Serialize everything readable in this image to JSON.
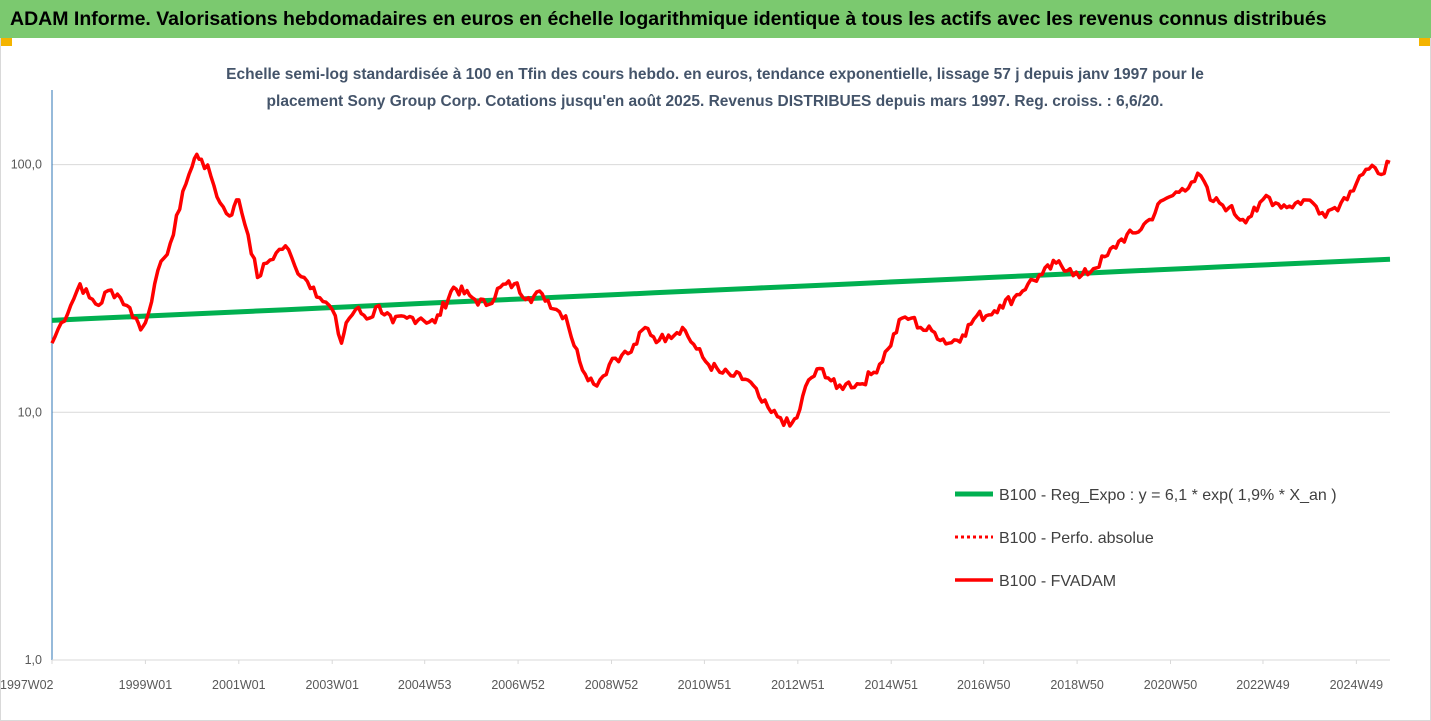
{
  "banner": {
    "title": "ADAM Informe. Valorisations hebdomadaires en euros en échelle logarithmique identique à tous les actifs avec les revenus connus distribués"
  },
  "colors": {
    "banner_bg": "#7bc96f",
    "regression": "#00b050",
    "fvadam": "#ff0000",
    "perfo": "#ff0000",
    "axis": "#2e75b6",
    "grid": "#d9d9d9"
  },
  "chart_data": {
    "type": "line",
    "title_line1": "Echelle semi-log standardisée à 100 en Tfin des cours hebdo. en euros, tendance exponentielle, lissage 57 j depuis janv 1997 pour le",
    "title_line2": "placement Sony Group Corp. Cotations jusqu'en août 2025. Revenus DISTRIBUES depuis mars 1997. Reg. croiss. : 6,6/20.",
    "y_scale": "log",
    "ylim": [
      1,
      200
    ],
    "y_ticks": [
      {
        "value": 1,
        "label": "1,0"
      },
      {
        "value": 10,
        "label": "10,0"
      },
      {
        "value": 100,
        "label": "100,0"
      }
    ],
    "xlim": [
      1997.0,
      2025.65
    ],
    "x_ticks": [
      {
        "pos": 1997.0,
        "label": "1997W02"
      },
      {
        "pos": 1999.0,
        "label": "1999W01"
      },
      {
        "pos": 2001.0,
        "label": "2001W01"
      },
      {
        "pos": 2003.0,
        "label": "2003W01"
      },
      {
        "pos": 2004.98,
        "label": "2004W53"
      },
      {
        "pos": 2006.98,
        "label": "2006W52"
      },
      {
        "pos": 2008.98,
        "label": "2008W52"
      },
      {
        "pos": 2010.97,
        "label": "2010W51"
      },
      {
        "pos": 2012.97,
        "label": "2012W51"
      },
      {
        "pos": 2014.97,
        "label": "2014W51"
      },
      {
        "pos": 2016.95,
        "label": "2016W50"
      },
      {
        "pos": 2018.95,
        "label": "2018W50"
      },
      {
        "pos": 2020.95,
        "label": "2020W50"
      },
      {
        "pos": 2022.93,
        "label": "2022W49"
      },
      {
        "pos": 2024.93,
        "label": "2024W49"
      }
    ],
    "grid": {
      "horizontal": true,
      "vertical": false
    },
    "legend_position": "lower-right",
    "series": [
      {
        "name": "B100 - Reg_Expo : y = 6,1 * exp( 1,9% *  X_an )",
        "style": "solid",
        "color": "#00b050",
        "x": [
          1997.0,
          2025.65
        ],
        "y": [
          23.5,
          41.5
        ]
      },
      {
        "name": "B100 - Perfo. absolue",
        "style": "dotted",
        "color": "#ff0000",
        "x": [],
        "y": []
      },
      {
        "name": "B100 - FVADAM",
        "style": "solid",
        "color": "#ff0000",
        "x": [
          1997.0,
          1997.2,
          1997.4,
          1997.6,
          1997.8,
          1998.0,
          1998.2,
          1998.4,
          1998.6,
          1998.8,
          1998.9,
          1999.0,
          1999.2,
          1999.4,
          1999.6,
          1999.8,
          2000.0,
          2000.1,
          2000.2,
          2000.4,
          2000.6,
          2000.8,
          2000.9,
          2001.0,
          2001.2,
          2001.4,
          2001.6,
          2001.8,
          2002.0,
          2002.2,
          2002.4,
          2002.6,
          2002.8,
          2003.0,
          2003.2,
          2003.3,
          2003.5,
          2003.8,
          2004.0,
          2004.3,
          2004.6,
          2004.9,
          2005.2,
          2005.6,
          2006.0,
          2006.3,
          2006.6,
          2006.9,
          2007.2,
          2007.5,
          2007.8,
          2008.0,
          2008.3,
          2008.6,
          2008.8,
          2009.0,
          2009.2,
          2009.4,
          2009.7,
          2010.0,
          2010.2,
          2010.5,
          2010.8,
          2011.0,
          2011.3,
          2011.6,
          2011.9,
          2012.2,
          2012.4,
          2012.6,
          2012.8,
          2012.95,
          2013.2,
          2013.5,
          2013.8,
          2014.0,
          2014.3,
          2014.6,
          2014.9,
          2015.2,
          2015.4,
          2015.6,
          2015.9,
          2016.2,
          2016.5,
          2016.8,
          2017.0,
          2017.3,
          2017.6,
          2017.9,
          2018.2,
          2018.5,
          2018.8,
          2019.0,
          2019.3,
          2019.6,
          2019.9,
          2020.2,
          2020.5,
          2020.8,
          2021.0,
          2021.2,
          2021.4,
          2021.6,
          2021.8,
          2022.0,
          2022.2,
          2022.5,
          2022.8,
          2023.0,
          2023.2,
          2023.5,
          2023.8,
          2024.0,
          2024.2,
          2024.4,
          2024.6,
          2024.8,
          2025.0,
          2025.2,
          2025.4,
          2025.65
        ],
        "y": [
          19.0,
          23.0,
          27.0,
          33.0,
          29.0,
          27.0,
          31.0,
          30.0,
          27.0,
          24.0,
          21.5,
          23.0,
          33.0,
          42.0,
          52.0,
          78.0,
          98.0,
          110.0,
          105.0,
          90.0,
          70.0,
          62.0,
          68.0,
          72.0,
          52.0,
          35.0,
          40.0,
          44.0,
          47.0,
          39.0,
          35.0,
          32.0,
          28.0,
          26.0,
          19.0,
          23.0,
          26.0,
          24.0,
          27.0,
          23.0,
          24.0,
          24.0,
          23.0,
          32.0,
          29.0,
          27.0,
          32.0,
          33.0,
          29.0,
          30.0,
          26.0,
          24.5,
          16.0,
          13.0,
          14.0,
          16.5,
          17.0,
          17.5,
          22.0,
          19.5,
          20.5,
          22.0,
          18.0,
          16.0,
          14.5,
          14.0,
          13.5,
          11.0,
          10.0,
          9.5,
          8.8,
          9.5,
          13.5,
          15.0,
          12.5,
          13.0,
          13.0,
          14.5,
          18.0,
          24.0,
          24.0,
          22.0,
          21.0,
          19.0,
          20.5,
          24.5,
          24.5,
          27.0,
          29.0,
          33.0,
          36.0,
          40.0,
          38.0,
          35.0,
          38.0,
          43.0,
          50.0,
          53.0,
          60.0,
          72.0,
          75.0,
          80.0,
          85.0,
          90.0,
          72.0,
          70.0,
          67.0,
          60.0,
          65.0,
          75.0,
          70.0,
          68.0,
          72.0,
          70.0,
          64.0,
          66.0,
          70.0,
          78.0,
          90.0,
          96.0,
          92.0,
          102.0
        ]
      }
    ]
  }
}
